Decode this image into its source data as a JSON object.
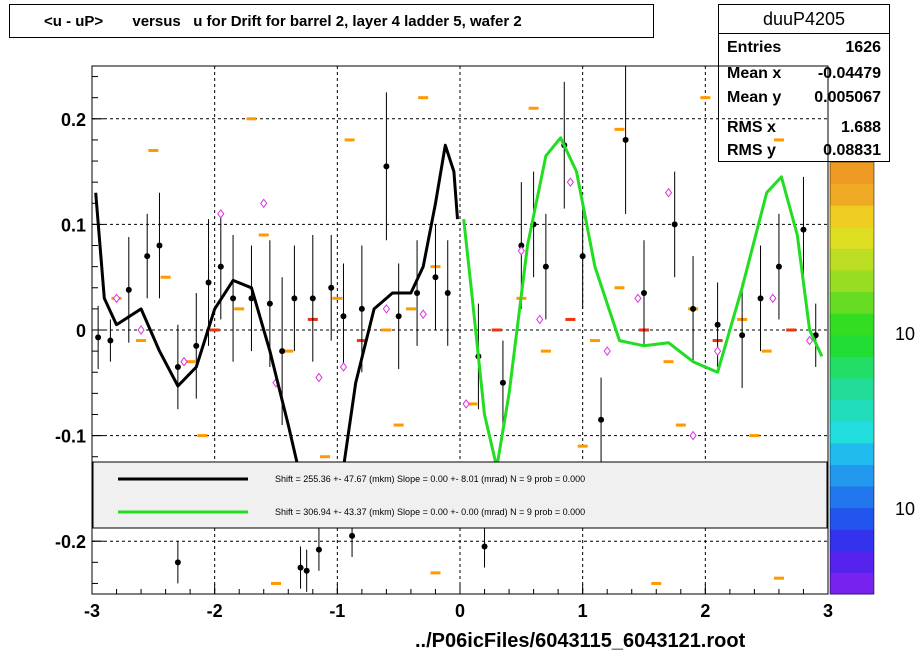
{
  "title": "<u - uP>       versus   u for Drift for barrel 2, layer 4 ladder 5, wafer 2",
  "stats": {
    "name": "duuP4205",
    "rows": [
      {
        "key": "Entries",
        "value": "1626"
      },
      {
        "key": "Mean x",
        "value": "-0.04479"
      },
      {
        "key": "Mean y",
        "value": "0.005067"
      },
      {
        "key": "RMS x",
        "value": "1.688"
      },
      {
        "key": "RMS y",
        "value": "0.08831"
      }
    ]
  },
  "footer": "../P06icFiles/6043115_6043121.root",
  "legend": [
    {
      "text": "Shift =   255.36 +- 47.67 (mkm) Slope =     0.00 +- 8.01 (mrad)  N = 9 prob = 0.000",
      "color": "#000000"
    },
    {
      "text": "Shift =   306.94 +- 43.37 (mkm) Slope =     0.00 +- 0.00 (mrad)  N = 9 prob = 0.000",
      "color": "#22dd22"
    }
  ],
  "palette_labels": [
    "10",
    "10"
  ],
  "chart_data": {
    "type": "scatter",
    "xlim": [
      -3,
      3
    ],
    "ylim": [
      -0.25,
      0.25
    ],
    "x_ticks": [
      -3,
      -2,
      -1,
      0,
      1,
      2,
      3
    ],
    "x_tick_labels": [
      "-3",
      "-2",
      "-1",
      "0",
      "1",
      "2",
      "3"
    ],
    "y_ticks": [
      -0.2,
      -0.1,
      0,
      0.1,
      0.2
    ],
    "y_tick_labels": [
      "-0.2",
      "-0.1",
      "0",
      "0.1",
      "0.2"
    ],
    "grid": true,
    "profile_points": [
      {
        "x": -2.95,
        "y": -0.007,
        "err": 0.03
      },
      {
        "x": -2.85,
        "y": -0.01,
        "err": 0.02
      },
      {
        "x": -2.7,
        "y": 0.038,
        "err": 0.05
      },
      {
        "x": -2.55,
        "y": 0.07,
        "err": 0.04
      },
      {
        "x": -2.45,
        "y": 0.08,
        "err": 0.05
      },
      {
        "x": -2.3,
        "y": -0.035,
        "err": 0.04
      },
      {
        "x": -2.15,
        "y": -0.015,
        "err": 0.05
      },
      {
        "x": -2.05,
        "y": 0.045,
        "err": 0.06
      },
      {
        "x": -1.95,
        "y": 0.06,
        "err": 0.05
      },
      {
        "x": -1.85,
        "y": 0.03,
        "err": 0.06
      },
      {
        "x": -1.7,
        "y": 0.03,
        "err": 0.05
      },
      {
        "x": -1.55,
        "y": 0.025,
        "err": 0.06
      },
      {
        "x": -1.45,
        "y": -0.02,
        "err": 0.07
      },
      {
        "x": -1.35,
        "y": 0.03,
        "err": 0.05
      },
      {
        "x": -1.2,
        "y": 0.03,
        "err": 0.06
      },
      {
        "x": -1.05,
        "y": 0.04,
        "err": 0.05
      },
      {
        "x": -0.95,
        "y": 0.013,
        "err": 0.05
      },
      {
        "x": -0.8,
        "y": 0.02,
        "err": 0.06
      },
      {
        "x": -0.6,
        "y": 0.155,
        "err": 0.07
      },
      {
        "x": -0.5,
        "y": 0.013,
        "err": 0.05
      },
      {
        "x": -0.35,
        "y": 0.035,
        "err": 0.05
      },
      {
        "x": -0.2,
        "y": 0.05,
        "err": 0.05
      },
      {
        "x": -0.1,
        "y": 0.035,
        "err": 0.05
      },
      {
        "x": 0.15,
        "y": -0.025,
        "err": 0.05
      },
      {
        "x": 0.35,
        "y": -0.05,
        "err": 0.04
      },
      {
        "x": 0.5,
        "y": 0.08,
        "err": 0.06
      },
      {
        "x": 0.6,
        "y": 0.1,
        "err": 0.05
      },
      {
        "x": 0.7,
        "y": 0.06,
        "err": 0.05
      },
      {
        "x": 0.85,
        "y": 0.175,
        "err": 0.06
      },
      {
        "x": 1.0,
        "y": 0.07,
        "err": 0.05
      },
      {
        "x": 1.15,
        "y": -0.085,
        "err": 0.04
      },
      {
        "x": 1.35,
        "y": 0.18,
        "err": 0.07
      },
      {
        "x": 1.5,
        "y": 0.035,
        "err": 0.05
      },
      {
        "x": 1.75,
        "y": 0.1,
        "err": 0.05
      },
      {
        "x": 1.9,
        "y": 0.02,
        "err": 0.05
      },
      {
        "x": 2.1,
        "y": 0.005,
        "err": 0.04
      },
      {
        "x": 2.3,
        "y": -0.005,
        "err": 0.05
      },
      {
        "x": 2.45,
        "y": 0.03,
        "err": 0.05
      },
      {
        "x": 2.6,
        "y": 0.06,
        "err": 0.05
      },
      {
        "x": 2.8,
        "y": 0.095,
        "err": 0.05
      },
      {
        "x": 2.9,
        "y": -0.005,
        "err": 0.03
      }
    ],
    "outlier_points": [
      {
        "x": -2.3,
        "y": -0.22
      },
      {
        "x": -1.3,
        "y": -0.225
      },
      {
        "x": -1.25,
        "y": -0.228
      },
      {
        "x": -1.15,
        "y": -0.208
      },
      {
        "x": -0.88,
        "y": -0.195
      },
      {
        "x": 0.2,
        "y": -0.205
      }
    ],
    "open_points": [
      {
        "x": -2.8,
        "y": 0.03
      },
      {
        "x": -2.6,
        "y": 0.0
      },
      {
        "x": -2.25,
        "y": -0.03
      },
      {
        "x": -1.95,
        "y": 0.11
      },
      {
        "x": -1.6,
        "y": 0.12
      },
      {
        "x": -1.5,
        "y": -0.05
      },
      {
        "x": -1.15,
        "y": -0.045
      },
      {
        "x": -0.95,
        "y": -0.035
      },
      {
        "x": -0.6,
        "y": 0.02
      },
      {
        "x": -0.3,
        "y": 0.015
      },
      {
        "x": 0.05,
        "y": -0.07
      },
      {
        "x": 0.5,
        "y": 0.075
      },
      {
        "x": 0.65,
        "y": 0.01
      },
      {
        "x": 0.9,
        "y": 0.14
      },
      {
        "x": 1.2,
        "y": -0.02
      },
      {
        "x": 1.45,
        "y": 0.03
      },
      {
        "x": 1.7,
        "y": 0.13
      },
      {
        "x": 1.9,
        "y": -0.1
      },
      {
        "x": 2.1,
        "y": -0.02
      },
      {
        "x": 2.55,
        "y": 0.03
      },
      {
        "x": 2.85,
        "y": -0.01
      }
    ],
    "colz_cells": [
      {
        "x": -2.8,
        "y": 0.03,
        "level": 1
      },
      {
        "x": -2.6,
        "y": -0.01,
        "level": 0
      },
      {
        "x": -2.4,
        "y": 0.05,
        "level": 0
      },
      {
        "x": -2.2,
        "y": -0.03,
        "level": 1
      },
      {
        "x": -2.0,
        "y": 0.0,
        "level": 2
      },
      {
        "x": -1.8,
        "y": 0.02,
        "level": 1
      },
      {
        "x": -1.6,
        "y": 0.09,
        "level": 0
      },
      {
        "x": -1.4,
        "y": -0.02,
        "level": 1
      },
      {
        "x": -1.2,
        "y": 0.01,
        "level": 2
      },
      {
        "x": -1.0,
        "y": 0.03,
        "level": 1
      },
      {
        "x": -0.8,
        "y": -0.01,
        "level": 2
      },
      {
        "x": -0.6,
        "y": 0.0,
        "level": 1
      },
      {
        "x": -0.4,
        "y": 0.02,
        "level": 1
      },
      {
        "x": -0.2,
        "y": 0.06,
        "level": 0
      },
      {
        "x": 0.1,
        "y": -0.07,
        "level": 1
      },
      {
        "x": 0.3,
        "y": 0.0,
        "level": 2
      },
      {
        "x": 0.5,
        "y": 0.03,
        "level": 1
      },
      {
        "x": 0.7,
        "y": -0.02,
        "level": 1
      },
      {
        "x": 0.9,
        "y": 0.01,
        "level": 2
      },
      {
        "x": 1.1,
        "y": -0.01,
        "level": 1
      },
      {
        "x": 1.3,
        "y": 0.04,
        "level": 0
      },
      {
        "x": 1.5,
        "y": 0.0,
        "level": 2
      },
      {
        "x": 1.7,
        "y": -0.03,
        "level": 1
      },
      {
        "x": 1.9,
        "y": 0.02,
        "level": 1
      },
      {
        "x": 2.1,
        "y": -0.01,
        "level": 2
      },
      {
        "x": 2.3,
        "y": 0.01,
        "level": 1
      },
      {
        "x": 2.5,
        "y": -0.02,
        "level": 1
      },
      {
        "x": 2.7,
        "y": 0.0,
        "level": 2
      },
      {
        "x": -2.5,
        "y": 0.17,
        "level": 0
      },
      {
        "x": -1.7,
        "y": 0.2,
        "level": 0
      },
      {
        "x": -0.9,
        "y": 0.18,
        "level": 0
      },
      {
        "x": -0.3,
        "y": 0.22,
        "level": 0
      },
      {
        "x": 0.6,
        "y": 0.21,
        "level": 0
      },
      {
        "x": 1.3,
        "y": 0.19,
        "level": 0
      },
      {
        "x": 2.0,
        "y": 0.22,
        "level": 0
      },
      {
        "x": 2.6,
        "y": 0.18,
        "level": 0
      },
      {
        "x": -2.1,
        "y": -0.1,
        "level": 0
      },
      {
        "x": -1.1,
        "y": -0.12,
        "level": 0
      },
      {
        "x": -0.5,
        "y": -0.09,
        "level": 0
      },
      {
        "x": 1.0,
        "y": -0.11,
        "level": 0
      },
      {
        "x": 1.8,
        "y": -0.09,
        "level": 0
      },
      {
        "x": 2.4,
        "y": -0.1,
        "level": 0
      },
      {
        "x": -1.5,
        "y": -0.24,
        "level": 0
      },
      {
        "x": -0.2,
        "y": -0.23,
        "level": 0
      },
      {
        "x": 1.6,
        "y": -0.24,
        "level": 0
      },
      {
        "x": 2.6,
        "y": -0.235,
        "level": 0
      }
    ],
    "fit_black": [
      [
        -2.97,
        0.13
      ],
      [
        -2.9,
        0.03
      ],
      [
        -2.8,
        0.005
      ],
      [
        -2.6,
        0.02
      ],
      [
        -2.45,
        -0.02
      ],
      [
        -2.3,
        -0.053
      ],
      [
        -2.15,
        -0.035
      ],
      [
        -2.0,
        0.02
      ],
      [
        -1.85,
        0.047
      ],
      [
        -1.7,
        0.04
      ],
      [
        -1.55,
        -0.02
      ],
      [
        -1.4,
        -0.09
      ],
      [
        -1.32,
        -0.13
      ]
    ],
    "fit_black_2": [
      [
        -0.95,
        -0.13
      ],
      [
        -0.85,
        -0.05
      ],
      [
        -0.7,
        0.02
      ],
      [
        -0.55,
        0.035
      ],
      [
        -0.4,
        0.035
      ],
      [
        -0.3,
        0.06
      ],
      [
        -0.2,
        0.12
      ],
      [
        -0.12,
        0.175
      ],
      [
        -0.05,
        0.15
      ],
      [
        -0.02,
        0.105
      ]
    ],
    "fit_green": [
      [
        0.03,
        0.105
      ],
      [
        0.1,
        0.03
      ],
      [
        0.2,
        -0.08
      ],
      [
        0.3,
        -0.13
      ],
      [
        0.4,
        -0.06
      ],
      [
        0.55,
        0.08
      ],
      [
        0.7,
        0.165
      ],
      [
        0.82,
        0.182
      ],
      [
        0.95,
        0.15
      ],
      [
        1.1,
        0.06
      ],
      [
        1.3,
        -0.01
      ],
      [
        1.5,
        -0.015
      ],
      [
        1.7,
        -0.012
      ],
      [
        1.9,
        -0.03
      ],
      [
        2.1,
        -0.04
      ],
      [
        2.3,
        0.04
      ],
      [
        2.5,
        0.13
      ],
      [
        2.62,
        0.145
      ],
      [
        2.75,
        0.09
      ],
      [
        2.85,
        0.0
      ],
      [
        2.95,
        -0.025
      ]
    ]
  }
}
